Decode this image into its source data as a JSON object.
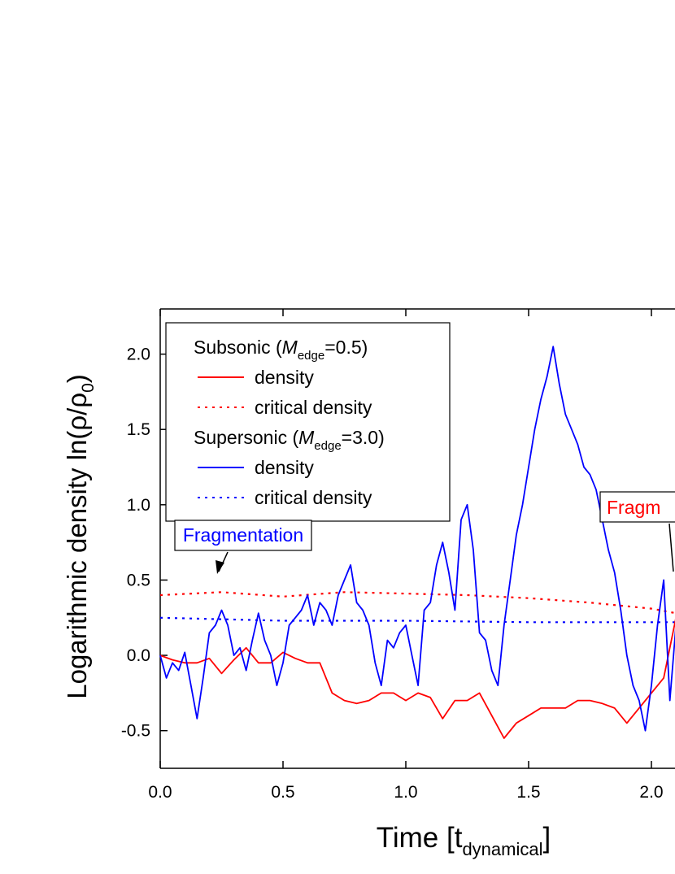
{
  "chart_data": {
    "type": "line",
    "xlabel": [
      "Time [t",
      "dynamical",
      "]"
    ],
    "ylabel": [
      "Logarithmic density ln(ρ/ρ",
      "0",
      ")"
    ],
    "xlim": [
      0,
      2.2
    ],
    "ylim": [
      -0.75,
      2.3
    ],
    "xticks": [
      {
        "value": 0,
        "label": "0.0"
      },
      {
        "value": 0.5,
        "label": "0.5"
      },
      {
        "value": 1,
        "label": "1.0"
      },
      {
        "value": 1.5,
        "label": "1.5"
      },
      {
        "value": 2,
        "label": "2.0"
      }
    ],
    "yticks": [
      {
        "value": -0.5,
        "label": "-0.5"
      },
      {
        "value": 0,
        "label": "0.0"
      },
      {
        "value": 0.5,
        "label": "0.5"
      },
      {
        "value": 1,
        "label": "1.0"
      },
      {
        "value": 1.5,
        "label": "1.5"
      },
      {
        "value": 2,
        "label": "2.0"
      }
    ],
    "grid": false,
    "legend_position": "upper-left",
    "legend_groups": [
      {
        "prefix": "Subsonic (",
        "symbol": "M",
        "subscript": "edge",
        "suffix": "=0.5)",
        "series": [
          0,
          1
        ]
      },
      {
        "prefix": "Supersonic (",
        "symbol": "M",
        "subscript": "edge",
        "suffix": "=3.0)",
        "series": [
          2,
          3
        ]
      }
    ],
    "series": [
      {
        "name": "density",
        "color": "#ff0000",
        "style": "solid",
        "x": [
          0,
          0.05,
          0.1,
          0.15,
          0.2,
          0.25,
          0.3,
          0.35,
          0.4,
          0.45,
          0.5,
          0.55,
          0.6,
          0.65,
          0.7,
          0.75,
          0.8,
          0.85,
          0.9,
          0.95,
          1.0,
          1.05,
          1.1,
          1.15,
          1.2,
          1.25,
          1.3,
          1.35,
          1.4,
          1.45,
          1.5,
          1.55,
          1.6,
          1.65,
          1.7,
          1.75,
          1.8,
          1.85,
          1.9,
          1.95,
          2.0,
          2.05,
          2.1
        ],
        "values": [
          0,
          -0.03,
          -0.05,
          -0.05,
          -0.02,
          -0.12,
          -0.03,
          0.05,
          -0.05,
          -0.05,
          0.02,
          -0.02,
          -0.05,
          -0.05,
          -0.25,
          -0.3,
          -0.32,
          -0.3,
          -0.25,
          -0.25,
          -0.3,
          -0.25,
          -0.28,
          -0.42,
          -0.3,
          -0.3,
          -0.25,
          -0.4,
          -0.55,
          -0.45,
          -0.4,
          -0.35,
          -0.35,
          -0.35,
          -0.3,
          -0.3,
          -0.32,
          -0.35,
          -0.45,
          -0.35,
          -0.25,
          -0.15,
          0.25
        ]
      },
      {
        "name": "critical density",
        "color": "#ff0000",
        "style": "dotted",
        "x": [
          0,
          0.25,
          0.5,
          0.75,
          1.0,
          1.25,
          1.5,
          1.75,
          2.0,
          2.1
        ],
        "values": [
          0.4,
          0.42,
          0.39,
          0.42,
          0.41,
          0.4,
          0.38,
          0.35,
          0.31,
          0.28
        ]
      },
      {
        "name": "density",
        "color": "#0000ff",
        "style": "solid",
        "x": [
          0,
          0.025,
          0.05,
          0.075,
          0.1,
          0.125,
          0.15,
          0.175,
          0.2,
          0.225,
          0.25,
          0.275,
          0.3,
          0.325,
          0.35,
          0.375,
          0.4,
          0.425,
          0.45,
          0.475,
          0.5,
          0.525,
          0.55,
          0.575,
          0.6,
          0.625,
          0.65,
          0.675,
          0.7,
          0.725,
          0.75,
          0.775,
          0.8,
          0.825,
          0.85,
          0.875,
          0.9,
          0.925,
          0.95,
          0.975,
          1.0,
          1.025,
          1.05,
          1.075,
          1.1,
          1.125,
          1.15,
          1.175,
          1.2,
          1.225,
          1.25,
          1.275,
          1.3,
          1.325,
          1.35,
          1.375,
          1.4,
          1.425,
          1.45,
          1.475,
          1.5,
          1.525,
          1.55,
          1.575,
          1.6,
          1.625,
          1.65,
          1.675,
          1.7,
          1.725,
          1.75,
          1.775,
          1.8,
          1.825,
          1.85,
          1.875,
          1.9,
          1.925,
          1.95,
          1.975,
          2.0,
          2.025,
          2.05,
          2.075,
          2.1
        ],
        "values": [
          0,
          -0.15,
          -0.05,
          -0.1,
          0.02,
          -0.2,
          -0.42,
          -0.15,
          0.15,
          0.2,
          0.3,
          0.2,
          0,
          0.05,
          -0.1,
          0.1,
          0.28,
          0.1,
          0,
          -0.2,
          -0.05,
          0.2,
          0.25,
          0.3,
          0.4,
          0.2,
          0.35,
          0.3,
          0.2,
          0.4,
          0.5,
          0.6,
          0.35,
          0.3,
          0.2,
          -0.05,
          -0.2,
          0.1,
          0.05,
          0.15,
          0.2,
          0,
          -0.2,
          0.3,
          0.35,
          0.6,
          0.75,
          0.55,
          0.3,
          0.9,
          1.0,
          0.7,
          0.15,
          0.1,
          -0.1,
          -0.2,
          0.2,
          0.5,
          0.8,
          1.0,
          1.25,
          1.5,
          1.7,
          1.85,
          2.05,
          1.8,
          1.6,
          1.5,
          1.4,
          1.25,
          1.2,
          1.1,
          0.9,
          0.7,
          0.55,
          0.3,
          0,
          -0.2,
          -0.3,
          -0.5,
          -0.2,
          0.2,
          0.5,
          -0.3,
          0.2
        ]
      },
      {
        "name": "critical density",
        "color": "#0000ff",
        "style": "dotted",
        "x": [
          0,
          0.5,
          1.0,
          1.5,
          2.0,
          2.1
        ],
        "values": [
          0.25,
          0.23,
          0.23,
          0.22,
          0.22,
          0.22
        ]
      }
    ],
    "annotations": [
      {
        "text": "Fragmentation",
        "color": "#0000ff"
      },
      {
        "text": "Fragm",
        "color": "#ff0000"
      }
    ]
  }
}
